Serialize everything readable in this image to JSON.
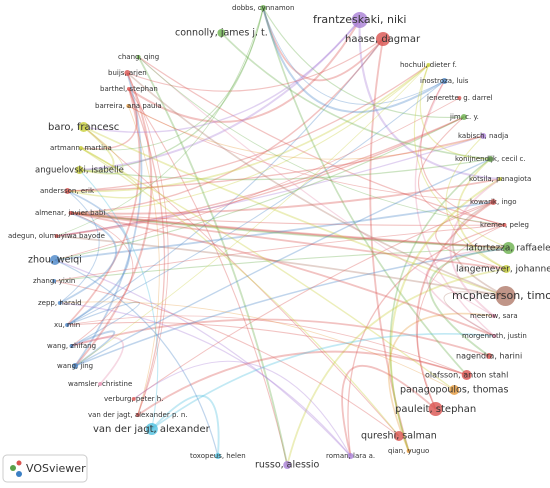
{
  "nodes": [
    {
      "label": "dobbs, cynnamon"
    },
    {
      "label": "connolly, james j. t."
    },
    {
      "label": "frantzeskaki, niki"
    },
    {
      "label": "haase, dagmar"
    },
    {
      "label": "chang, qing"
    },
    {
      "label": "hochuli, dieter f."
    },
    {
      "label": "buijs, arjen"
    },
    {
      "label": "inostroza, luis"
    },
    {
      "label": "barthel, stephan"
    },
    {
      "label": "jenerette, g. darrel"
    },
    {
      "label": "barreira, ana paula"
    },
    {
      "label": "jim, c. y."
    },
    {
      "label": "baro, francesc"
    },
    {
      "label": "kabisch, nadja"
    },
    {
      "label": "artmann, martina"
    },
    {
      "label": "konijnendijk, cecil c."
    },
    {
      "label": "anguelovski, isabelle"
    },
    {
      "label": "kotsila, panagiota"
    },
    {
      "label": "andersson, erik"
    },
    {
      "label": "kowarik, ingo"
    },
    {
      "label": "almenar, javier babí"
    },
    {
      "label": "kremer, peleg"
    },
    {
      "label": "adegun, olumuyiwa bayode"
    },
    {
      "label": "lafortezza, raffaele"
    },
    {
      "label": "zhou, weiqi"
    },
    {
      "label": "langemeyer, johannes"
    },
    {
      "label": "zhang, yixin"
    },
    {
      "label": "mcphearson, timon"
    },
    {
      "label": "zepp, harald"
    },
    {
      "label": "meerow, sara"
    },
    {
      "label": "xu, min"
    },
    {
      "label": "morgenroth, justin"
    },
    {
      "label": "wang, zhifang"
    },
    {
      "label": "nagendra, harini"
    },
    {
      "label": "wang, jing"
    },
    {
      "label": "olafsson, anton stahl"
    },
    {
      "label": "wamsler, christine"
    },
    {
      "label": "verburg, peter h."
    },
    {
      "label": "panagopoulos, thomas"
    },
    {
      "label": "van der jagt, alexander p. n."
    },
    {
      "label": "pauleit, stephan"
    },
    {
      "label": "van der jagt, alexander"
    },
    {
      "label": "qureshi, salman"
    },
    {
      "label": "qian, yuguo"
    },
    {
      "label": "toxopeus, helen"
    },
    {
      "label": "roman, lara a."
    },
    {
      "label": "russo, alessio"
    }
  ],
  "logo": "VOSviewer"
}
